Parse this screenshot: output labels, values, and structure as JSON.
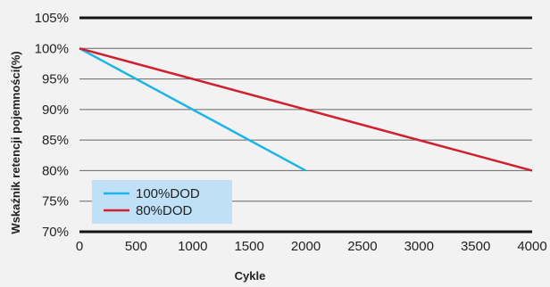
{
  "chart_data": {
    "type": "line",
    "xlabel": "Cykle",
    "ylabel": "Wskaźnik retencji pojemności(%)",
    "xlim": [
      0,
      4000
    ],
    "ylim": [
      70,
      105
    ],
    "x_ticks": [
      "0",
      "500",
      "1000",
      "1500",
      "2000",
      "2500",
      "3000",
      "3500",
      "4000"
    ],
    "y_ticks": [
      "70%",
      "75%",
      "80%",
      "85%",
      "90%",
      "95%",
      "100%",
      "105%"
    ],
    "grid": "horizontal",
    "legend_position": "bottom-left",
    "series": [
      {
        "name": "100%DOD",
        "color": "#1fb4e6",
        "points": [
          [
            0,
            100
          ],
          [
            2000,
            80
          ]
        ]
      },
      {
        "name": "80%DOD",
        "color": "#d0202e",
        "points": [
          [
            0,
            100
          ],
          [
            4000,
            80
          ]
        ]
      }
    ]
  }
}
